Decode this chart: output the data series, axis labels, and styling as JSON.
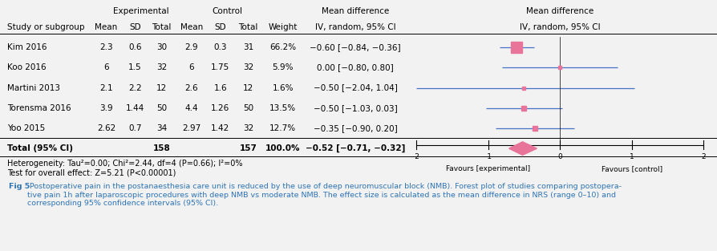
{
  "studies": [
    {
      "name": "Kim 2016",
      "exp_mean": "2.3",
      "exp_sd": "0.6",
      "exp_n": 30,
      "ctrl_mean": "2.9",
      "ctrl_sd": "0.3",
      "ctrl_n": 31,
      "weight": "66.2%",
      "md": -0.6,
      "ci_lo": -0.84,
      "ci_hi": -0.36,
      "ci_str": "−0.60 [−0.84, −0.36]"
    },
    {
      "name": "Koo 2016",
      "exp_mean": "6",
      "exp_sd": "1.5",
      "exp_n": 32,
      "ctrl_mean": "6",
      "ctrl_sd": "1.75",
      "ctrl_n": 32,
      "weight": "5.9%",
      "md": 0.0,
      "ci_lo": -0.8,
      "ci_hi": 0.8,
      "ci_str": "0.00 [−0.80, 0.80]"
    },
    {
      "name": "Martini 2013",
      "exp_mean": "2.1",
      "exp_sd": "2.2",
      "exp_n": 12,
      "ctrl_mean": "2.6",
      "ctrl_sd": "1.6",
      "ctrl_n": 12,
      "weight": "1.6%",
      "md": -0.5,
      "ci_lo": -2.04,
      "ci_hi": 1.04,
      "ci_str": "−0.50 [−2.04, 1.04]"
    },
    {
      "name": "Torensma 2016",
      "exp_mean": "3.9",
      "exp_sd": "1.44",
      "exp_n": 50,
      "ctrl_mean": "4.4",
      "ctrl_sd": "1.26",
      "ctrl_n": 50,
      "weight": "13.5%",
      "md": -0.5,
      "ci_lo": -1.03,
      "ci_hi": 0.03,
      "ci_str": "−0.50 [−1.03, 0.03]"
    },
    {
      "name": "Yoo 2015",
      "exp_mean": "2.62",
      "exp_sd": "0.7",
      "exp_n": 34,
      "ctrl_mean": "2.97",
      "ctrl_sd": "1.42",
      "ctrl_n": 32,
      "weight": "12.7%",
      "md": -0.35,
      "ci_lo": -0.9,
      "ci_hi": 0.2,
      "ci_str": "−0.35 [−0.90, 0.20]"
    }
  ],
  "total_exp_n": 158,
  "total_ctrl_n": 157,
  "total_weight": "100.0%",
  "total_md": -0.52,
  "total_ci_lo": -0.71,
  "total_ci_hi": -0.32,
  "total_ci_str": "−0.52 [−0.71, −0.32]",
  "heterogeneity_line": "Heterogeneity: Tau²=0.00; Chi²=2.44, df=4 (P=0.66); I²=0%",
  "overall_effect_line": "Test for overall effect: Z=5.21 (P<0.00001)",
  "axis_min": -2,
  "axis_max": 2,
  "axis_ticks": [
    -2,
    -1,
    0,
    1,
    2
  ],
  "favours_left": "Favours [experimental]",
  "favours_right": "Favours [control]",
  "marker_color": "#E8749A",
  "diamond_color": "#E8749A",
  "line_color": "#4472C4",
  "caption_color": "#2E74B5",
  "caption_bold": "Fig 5",
  "caption_rest": " Postoperative pain in the postanaesthesia care unit is reduced by the use of deep neuromuscular block (NMB). Forest plot of studies comparing postopera-\ntive pain 1h after laparoscopic procedures with deep NMB vs moderate NMB. The effect size is calculated as the mean difference in NRS (range 0–10) and\ncorresponding 95% confidence intervals (95% CI).",
  "fig_bg": "#F2F2F2",
  "table_bg": "#FFFFFF",
  "caption_bg": "#E8E8EE"
}
